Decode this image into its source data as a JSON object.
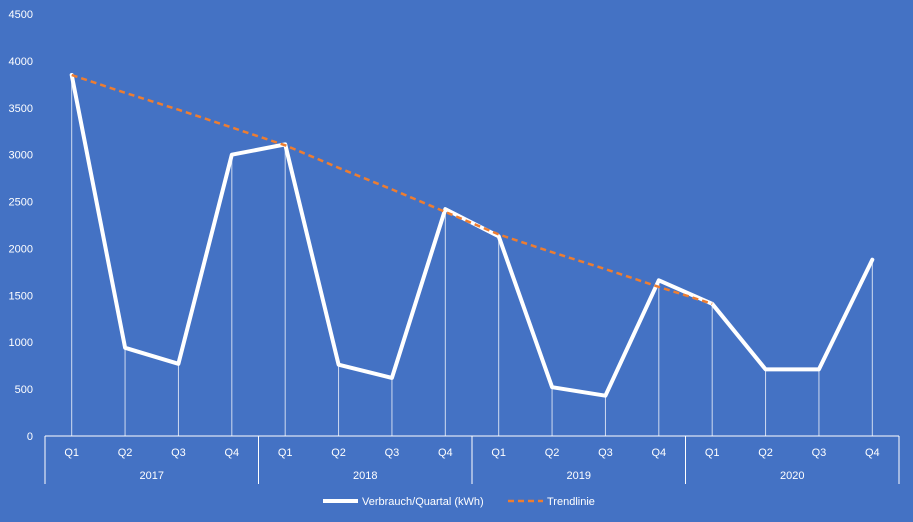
{
  "chart_data": {
    "type": "line",
    "title": "",
    "xlabel": "",
    "ylabel": "",
    "ylim": [
      0,
      4500
    ],
    "yticks": [
      0,
      500,
      1000,
      1500,
      2000,
      2500,
      3000,
      3500,
      4000,
      4500
    ],
    "grid": false,
    "drop_lines": true,
    "legend_position": "bottom",
    "groups": [
      {
        "label": "2017",
        "quarters": [
          "Q1",
          "Q2",
          "Q3",
          "Q4"
        ]
      },
      {
        "label": "2018",
        "quarters": [
          "Q1",
          "Q2",
          "Q3",
          "Q4"
        ]
      },
      {
        "label": "2019",
        "quarters": [
          "Q1",
          "Q2",
          "Q3",
          "Q4"
        ]
      },
      {
        "label": "2020",
        "quarters": [
          "Q1",
          "Q2",
          "Q3",
          "Q4"
        ]
      }
    ],
    "series": [
      {
        "name": "Verbrauch/Quartal (kWh)",
        "color": "#FFFFFF",
        "style": "solid",
        "values": [
          3850,
          940,
          770,
          3000,
          3110,
          760,
          620,
          2420,
          2130,
          520,
          430,
          1660,
          1410,
          710,
          710,
          1880
        ]
      },
      {
        "name": "Trendlinie",
        "color": "#ED7D31",
        "style": "dashed",
        "values": [
          3850,
          3660,
          3480,
          3290,
          3100,
          2860,
          2630,
          2390,
          2150,
          1960,
          1780,
          1590,
          1410,
          null,
          null,
          null
        ]
      }
    ]
  }
}
